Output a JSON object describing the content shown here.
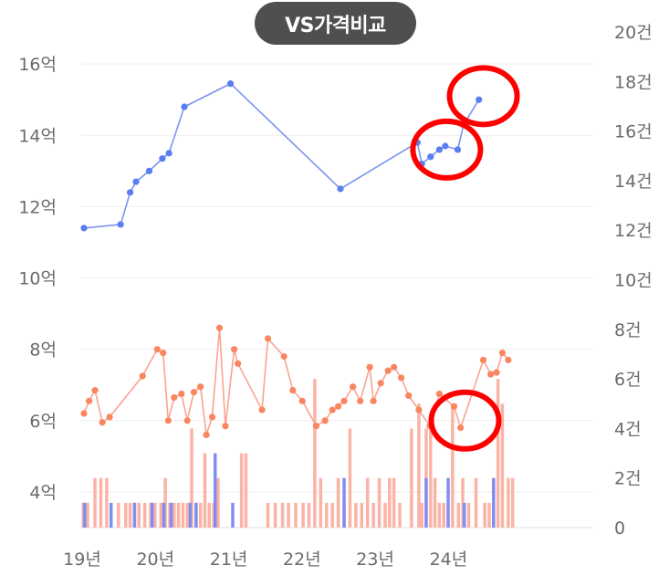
{
  "header": {
    "compare_label": "VS가격비교"
  },
  "chart_data": {
    "type": "line",
    "y_left": {
      "ticks": [
        4,
        6,
        8,
        10,
        12,
        14,
        16
      ],
      "tick_labels": [
        "4억",
        "6억",
        "8억",
        "10억",
        "12억",
        "14억",
        "16억"
      ],
      "ylim": [
        3,
        16.9
      ]
    },
    "y_right": {
      "ticks": [
        0,
        2,
        4,
        6,
        8,
        10,
        12,
        14,
        16,
        18,
        20
      ],
      "tick_labels": [
        "0",
        "2건",
        "4건",
        "6건",
        "8건",
        "10건",
        "12건",
        "14건",
        "16건",
        "18건",
        "20건"
      ],
      "ylim": [
        0,
        20
      ]
    },
    "x_axis": {
      "ticks": [
        2019,
        2020,
        2021,
        2022,
        2023,
        2024
      ],
      "tick_labels": [
        "19년",
        "20년",
        "21년",
        "22년",
        "23년",
        "24년"
      ],
      "xlim": [
        2019,
        2026
      ]
    },
    "series": [
      {
        "color": "#7b93f2",
        "point_color": "#5a7df0",
        "axis": "left",
        "x": [
          2019.05,
          2019.55,
          2019.68,
          2019.76,
          2019.94,
          2020.12,
          2020.21,
          2020.42,
          2021.05,
          2022.55,
          2023.6,
          2023.66,
          2023.78,
          2023.9,
          2023.98,
          2024.15,
          2024.23,
          2024.44
        ],
        "y": [
          11.4,
          11.5,
          12.4,
          12.7,
          13.0,
          13.35,
          13.5,
          14.8,
          15.45,
          12.5,
          13.8,
          13.2,
          13.4,
          13.6,
          13.7,
          13.6,
          14.3,
          15.0
        ]
      },
      {
        "color": "#fba392",
        "point_color": "#f9865f",
        "axis": "left",
        "x": [
          2019.05,
          2019.12,
          2019.2,
          2019.3,
          2019.4,
          2019.85,
          2020.05,
          2020.13,
          2020.2,
          2020.28,
          2020.38,
          2020.46,
          2020.55,
          2020.64,
          2020.72,
          2020.8,
          2020.9,
          2020.98,
          2021.1,
          2021.15,
          2021.48,
          2021.56,
          2021.78,
          2021.9,
          2022.03,
          2022.22,
          2022.34,
          2022.44,
          2022.52,
          2022.6,
          2022.72,
          2022.82,
          2022.95,
          2023.0,
          2023.1,
          2023.2,
          2023.28,
          2023.38,
          2023.48,
          2023.62,
          2023.77,
          2023.9,
          2024.1,
          2024.19,
          2024.5,
          2024.6,
          2024.68,
          2024.76,
          2024.84
        ],
        "y": [
          6.2,
          6.55,
          6.85,
          5.95,
          6.1,
          7.25,
          8.0,
          7.9,
          6.0,
          6.65,
          6.75,
          6.0,
          6.8,
          6.95,
          5.6,
          6.1,
          8.6,
          5.85,
          8.0,
          7.6,
          6.3,
          8.3,
          7.8,
          6.85,
          6.55,
          5.85,
          6.0,
          6.3,
          6.4,
          6.55,
          6.95,
          6.55,
          7.5,
          6.55,
          7.05,
          7.4,
          7.5,
          7.2,
          6.7,
          6.3,
          5.85,
          6.75,
          6.4,
          5.8,
          7.7,
          7.3,
          7.35,
          7.9,
          7.7
        ]
      }
    ],
    "bars": {
      "axis": "right",
      "series": [
        {
          "color": "#fbb3a6",
          "x": [
            2019.04,
            2019.1,
            2019.2,
            2019.28,
            2019.36,
            2019.52,
            2019.62,
            2019.68,
            2019.74,
            2019.8,
            2019.88,
            2019.96,
            2020.02,
            2020.1,
            2020.16,
            2020.22,
            2020.28,
            2020.34,
            2020.4,
            2020.46,
            2020.52,
            2020.58,
            2020.64,
            2020.7,
            2020.76,
            2020.82,
            2020.88,
            2021.2,
            2021.26,
            2021.56,
            2021.66,
            2021.76,
            2021.84,
            2021.94,
            2022.04,
            2022.12,
            2022.2,
            2022.28,
            2022.36,
            2022.44,
            2022.52,
            2022.6,
            2022.68,
            2022.76,
            2022.84,
            2022.92,
            2023.0,
            2023.08,
            2023.16,
            2023.22,
            2023.28,
            2023.36,
            2023.52,
            2023.62,
            2023.66,
            2023.72,
            2023.78,
            2023.84,
            2023.9,
            2023.96,
            2024.08,
            2024.16,
            2024.22,
            2024.3,
            2024.4,
            2024.52,
            2024.58,
            2024.64,
            2024.7,
            2024.76,
            2024.84,
            2024.9
          ],
          "values": [
            1,
            1,
            2,
            2,
            2,
            1,
            1,
            1,
            1,
            1,
            1,
            1,
            1,
            1,
            2,
            1,
            1,
            1,
            1,
            1,
            4,
            1,
            1,
            3,
            1,
            1,
            2,
            3,
            3,
            1,
            1,
            1,
            1,
            1,
            1,
            1,
            6,
            2,
            1,
            1,
            2,
            1,
            4,
            1,
            1,
            2,
            1,
            2,
            1,
            2,
            2,
            1,
            4,
            5,
            1,
            4,
            4,
            2,
            1,
            1,
            5,
            1,
            2,
            1,
            2,
            1,
            1,
            2,
            6,
            5,
            2,
            2
          ]
        },
        {
          "color": "#7f8ef0",
          "x": [
            2019.06,
            2019.42,
            2019.74,
            2019.98,
            2020.14,
            2020.24,
            2020.5,
            2020.58,
            2020.84,
            2021.08,
            2022.6,
            2023.72,
            2024.02,
            2024.24,
            2024.64
          ],
          "values": [
            1,
            1,
            1,
            1,
            1,
            1,
            1,
            1,
            3,
            1,
            2,
            2,
            2,
            1,
            2
          ]
        }
      ]
    },
    "annotations": [
      {
        "type": "circle",
        "color": "#ff0000",
        "x": 2024.5,
        "y": 15.1
      },
      {
        "type": "circle",
        "color": "#ff0000",
        "x": 2024.0,
        "y": 13.6
      },
      {
        "type": "circle",
        "color": "#ff0000",
        "x": 2024.25,
        "y": 6.0
      }
    ],
    "grid": true,
    "legend": "none"
  }
}
